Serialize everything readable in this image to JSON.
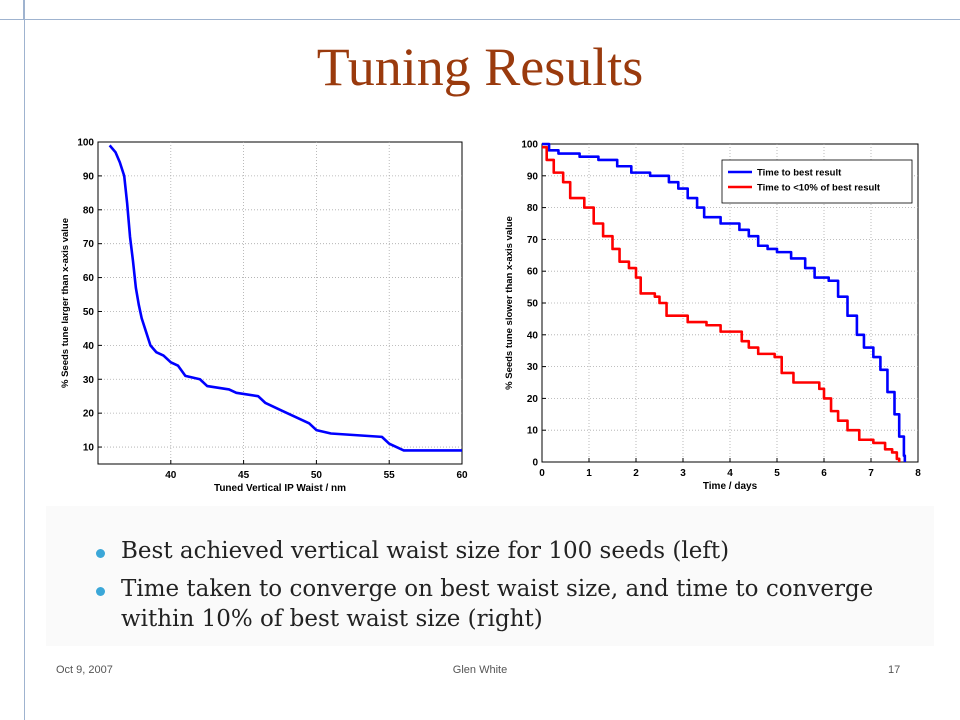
{
  "slide": {
    "title": "Tuning Results",
    "bullets": [
      "Best achieved vertical waist size for 100 seeds (left)",
      "Time taken to converge on best waist size, and time to converge within 10% of best waist size (right)"
    ],
    "footer": {
      "date": "Oct 9, 2007",
      "author": "Glen White",
      "page": "17"
    },
    "colors": {
      "title": "#9a3a0d",
      "frame": "#9fb3cf",
      "bullet": "#3ba7d8"
    }
  },
  "chart_data": [
    {
      "type": "line",
      "title": "",
      "xlabel": "Tuned Vertical IP Waist / nm",
      "ylabel": "% Seeds tune larger than x-axis value",
      "xlim": [
        35,
        60
      ],
      "ylim": [
        5,
        100
      ],
      "xticks": [
        40,
        45,
        50,
        55,
        60
      ],
      "yticks": [
        10,
        20,
        30,
        40,
        50,
        60,
        70,
        80,
        90,
        100
      ],
      "grid": true,
      "series": [
        {
          "color": "#0000ff",
          "step": false,
          "points": [
            [
              35.8,
              99
            ],
            [
              36.2,
              97
            ],
            [
              36.5,
              94
            ],
            [
              36.8,
              90
            ],
            [
              37.0,
              82
            ],
            [
              37.2,
              72
            ],
            [
              37.4,
              65
            ],
            [
              37.6,
              57
            ],
            [
              37.8,
              52
            ],
            [
              38.0,
              48
            ],
            [
              38.3,
              44
            ],
            [
              38.6,
              40
            ],
            [
              39.0,
              38
            ],
            [
              39.5,
              37
            ],
            [
              40.0,
              35
            ],
            [
              40.5,
              34
            ],
            [
              41.0,
              31
            ],
            [
              42.0,
              30
            ],
            [
              42.5,
              28
            ],
            [
              44.0,
              27
            ],
            [
              44.5,
              26
            ],
            [
              46.0,
              25
            ],
            [
              46.5,
              23
            ],
            [
              47.5,
              21
            ],
            [
              48.5,
              19
            ],
            [
              49.5,
              17
            ],
            [
              50.0,
              15
            ],
            [
              51.0,
              14
            ],
            [
              54.5,
              13
            ],
            [
              55.0,
              11
            ],
            [
              56.0,
              9
            ],
            [
              60.0,
              9
            ]
          ]
        }
      ]
    },
    {
      "type": "line",
      "title": "",
      "xlabel": "Time / days",
      "ylabel": "% Seeds tune slower than x-axis value",
      "xlim": [
        0,
        8
      ],
      "ylim": [
        0,
        100
      ],
      "xticks": [
        0,
        1,
        2,
        3,
        4,
        5,
        6,
        7,
        8
      ],
      "yticks": [
        0,
        10,
        20,
        30,
        40,
        50,
        60,
        70,
        80,
        90,
        100
      ],
      "grid": true,
      "legend_position": "top-right",
      "series": [
        {
          "name": "Time to best result",
          "color": "#0000ff",
          "step": true,
          "points": [
            [
              0,
              100
            ],
            [
              0.15,
              98
            ],
            [
              0.35,
              97
            ],
            [
              0.8,
              96
            ],
            [
              1.2,
              95
            ],
            [
              1.6,
              93
            ],
            [
              1.9,
              91
            ],
            [
              2.3,
              90
            ],
            [
              2.7,
              88
            ],
            [
              2.9,
              86
            ],
            [
              3.1,
              83
            ],
            [
              3.3,
              80
            ],
            [
              3.45,
              77
            ],
            [
              3.8,
              75
            ],
            [
              4.2,
              73
            ],
            [
              4.4,
              71
            ],
            [
              4.6,
              68
            ],
            [
              4.8,
              67
            ],
            [
              5.0,
              66
            ],
            [
              5.3,
              64
            ],
            [
              5.6,
              61
            ],
            [
              5.8,
              58
            ],
            [
              6.1,
              57
            ],
            [
              6.3,
              52
            ],
            [
              6.5,
              46
            ],
            [
              6.7,
              40
            ],
            [
              6.85,
              36
            ],
            [
              7.05,
              33
            ],
            [
              7.2,
              29
            ],
            [
              7.35,
              22
            ],
            [
              7.5,
              15
            ],
            [
              7.6,
              8
            ],
            [
              7.7,
              2
            ],
            [
              7.72,
              0
            ]
          ]
        },
        {
          "name": "Time to <10% of best result",
          "color": "#ff0000",
          "step": true,
          "points": [
            [
              0,
              99
            ],
            [
              0.1,
              95
            ],
            [
              0.25,
              91
            ],
            [
              0.45,
              88
            ],
            [
              0.6,
              83
            ],
            [
              0.9,
              80
            ],
            [
              1.1,
              75
            ],
            [
              1.3,
              71
            ],
            [
              1.5,
              67
            ],
            [
              1.65,
              63
            ],
            [
              1.85,
              61
            ],
            [
              2.0,
              58
            ],
            [
              2.1,
              53
            ],
            [
              2.4,
              52
            ],
            [
              2.5,
              50
            ],
            [
              2.65,
              46
            ],
            [
              3.1,
              44
            ],
            [
              3.5,
              43
            ],
            [
              3.8,
              41
            ],
            [
              4.25,
              38
            ],
            [
              4.4,
              36
            ],
            [
              4.6,
              34
            ],
            [
              4.95,
              33
            ],
            [
              5.1,
              28
            ],
            [
              5.35,
              25
            ],
            [
              5.9,
              23
            ],
            [
              6.0,
              20
            ],
            [
              6.15,
              16
            ],
            [
              6.3,
              13
            ],
            [
              6.5,
              10
            ],
            [
              6.75,
              7
            ],
            [
              7.05,
              6
            ],
            [
              7.3,
              4
            ],
            [
              7.45,
              3
            ],
            [
              7.55,
              1
            ],
            [
              7.6,
              0
            ]
          ]
        }
      ]
    }
  ]
}
